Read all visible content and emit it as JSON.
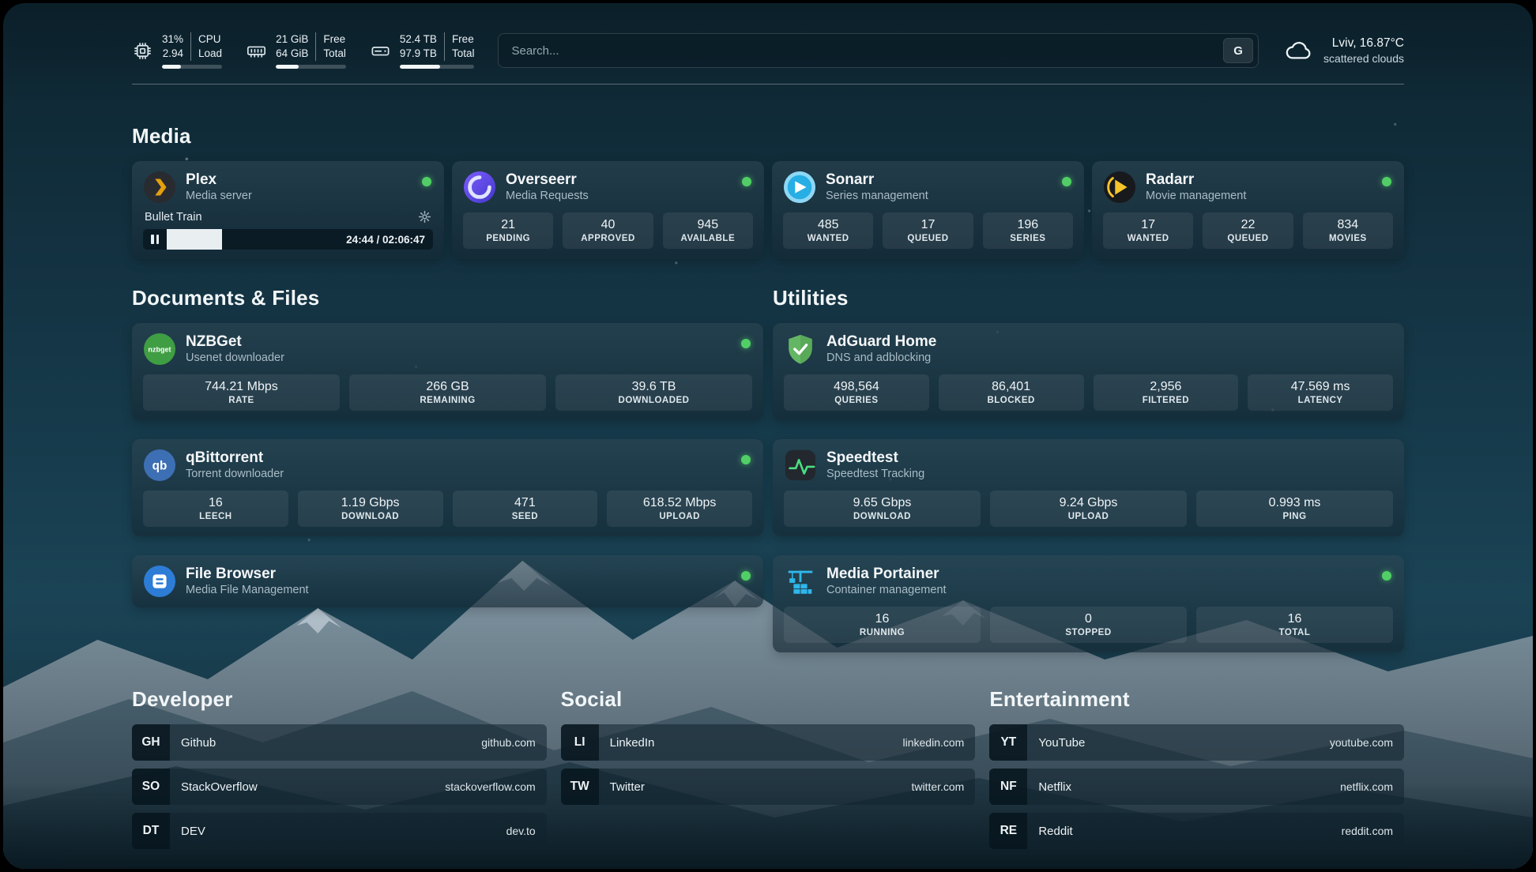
{
  "colors": {
    "status_online": "#51cf66"
  },
  "header": {
    "cpu": {
      "value_top": "31%",
      "value_bottom": "2.94",
      "label_top": "CPU",
      "label_bottom": "Load",
      "bar_percent": 31
    },
    "ram": {
      "value_top": "21 GiB",
      "value_bottom": "64 GiB",
      "label_top": "Free",
      "label_bottom": "Total",
      "bar_percent": 33
    },
    "disk": {
      "value_top": "52.4 TB",
      "value_bottom": "97.9 TB",
      "label_top": "Free",
      "label_bottom": "Total",
      "bar_percent": 54
    },
    "search": {
      "placeholder": "Search...",
      "engine_label": "G"
    },
    "weather": {
      "location": "Lviv, 16.87°C",
      "condition": "scattered clouds"
    }
  },
  "sections": {
    "media": {
      "title": "Media"
    },
    "documents": {
      "title": "Documents & Files"
    },
    "utilities": {
      "title": "Utilities"
    },
    "developer": {
      "title": "Developer"
    },
    "social": {
      "title": "Social"
    },
    "entertainment": {
      "title": "Entertainment"
    }
  },
  "apps": {
    "plex": {
      "name": "Plex",
      "desc": "Media server",
      "online": true,
      "now_playing": {
        "title": "Bullet Train",
        "time": "24:44 / 02:06:47",
        "progress_percent": 19
      }
    },
    "overseerr": {
      "name": "Overseerr",
      "desc": "Media Requests",
      "online": true,
      "stats": [
        {
          "value": "21",
          "label": "PENDING"
        },
        {
          "value": "40",
          "label": "APPROVED"
        },
        {
          "value": "945",
          "label": "AVAILABLE"
        }
      ]
    },
    "sonarr": {
      "name": "Sonarr",
      "desc": "Series management",
      "online": true,
      "stats": [
        {
          "value": "485",
          "label": "WANTED"
        },
        {
          "value": "17",
          "label": "QUEUED"
        },
        {
          "value": "196",
          "label": "SERIES"
        }
      ]
    },
    "radarr": {
      "name": "Radarr",
      "desc": "Movie management",
      "online": true,
      "stats": [
        {
          "value": "17",
          "label": "WANTED"
        },
        {
          "value": "22",
          "label": "QUEUED"
        },
        {
          "value": "834",
          "label": "MOVIES"
        }
      ]
    },
    "nzbget": {
      "name": "NZBGet",
      "desc": "Usenet downloader",
      "online": true,
      "stats": [
        {
          "value": "744.21 Mbps",
          "label": "RATE"
        },
        {
          "value": "266 GB",
          "label": "REMAINING"
        },
        {
          "value": "39.6 TB",
          "label": "DOWNLOADED"
        }
      ]
    },
    "qbittorrent": {
      "name": "qBittorrent",
      "desc": "Torrent downloader",
      "online": true,
      "stats": [
        {
          "value": "16",
          "label": "LEECH"
        },
        {
          "value": "1.19 Gbps",
          "label": "DOWNLOAD"
        },
        {
          "value": "471",
          "label": "SEED"
        },
        {
          "value": "618.52 Mbps",
          "label": "UPLOAD"
        }
      ]
    },
    "filebrowser": {
      "name": "File Browser",
      "desc": "Media File Management",
      "online": true
    },
    "adguard": {
      "name": "AdGuard Home",
      "desc": "DNS and adblocking",
      "online": false,
      "stats": [
        {
          "value": "498,564",
          "label": "QUERIES"
        },
        {
          "value": "86,401",
          "label": "BLOCKED"
        },
        {
          "value": "2,956",
          "label": "FILTERED"
        },
        {
          "value": "47.569 ms",
          "label": "LATENCY"
        }
      ]
    },
    "speedtest": {
      "name": "Speedtest",
      "desc": "Speedtest Tracking",
      "online": false,
      "stats": [
        {
          "value": "9.65 Gbps",
          "label": "DOWNLOAD"
        },
        {
          "value": "9.24 Gbps",
          "label": "UPLOAD"
        },
        {
          "value": "0.993 ms",
          "label": "PING"
        }
      ]
    },
    "portainer": {
      "name": "Media Portainer",
      "desc": "Container management",
      "online": true,
      "stats": [
        {
          "value": "16",
          "label": "RUNNING"
        },
        {
          "value": "0",
          "label": "STOPPED"
        },
        {
          "value": "16",
          "label": "TOTAL"
        }
      ]
    }
  },
  "bookmarks": {
    "developer": [
      {
        "abbr": "GH",
        "name": "Github",
        "url": "github.com"
      },
      {
        "abbr": "SO",
        "name": "StackOverflow",
        "url": "stackoverflow.com"
      },
      {
        "abbr": "DT",
        "name": "DEV",
        "url": "dev.to"
      }
    ],
    "social": [
      {
        "abbr": "LI",
        "name": "LinkedIn",
        "url": "linkedin.com"
      },
      {
        "abbr": "TW",
        "name": "Twitter",
        "url": "twitter.com"
      }
    ],
    "entertainment": [
      {
        "abbr": "YT",
        "name": "YouTube",
        "url": "youtube.com"
      },
      {
        "abbr": "NF",
        "name": "Netflix",
        "url": "netflix.com"
      },
      {
        "abbr": "RE",
        "name": "Reddit",
        "url": "reddit.com"
      }
    ]
  }
}
